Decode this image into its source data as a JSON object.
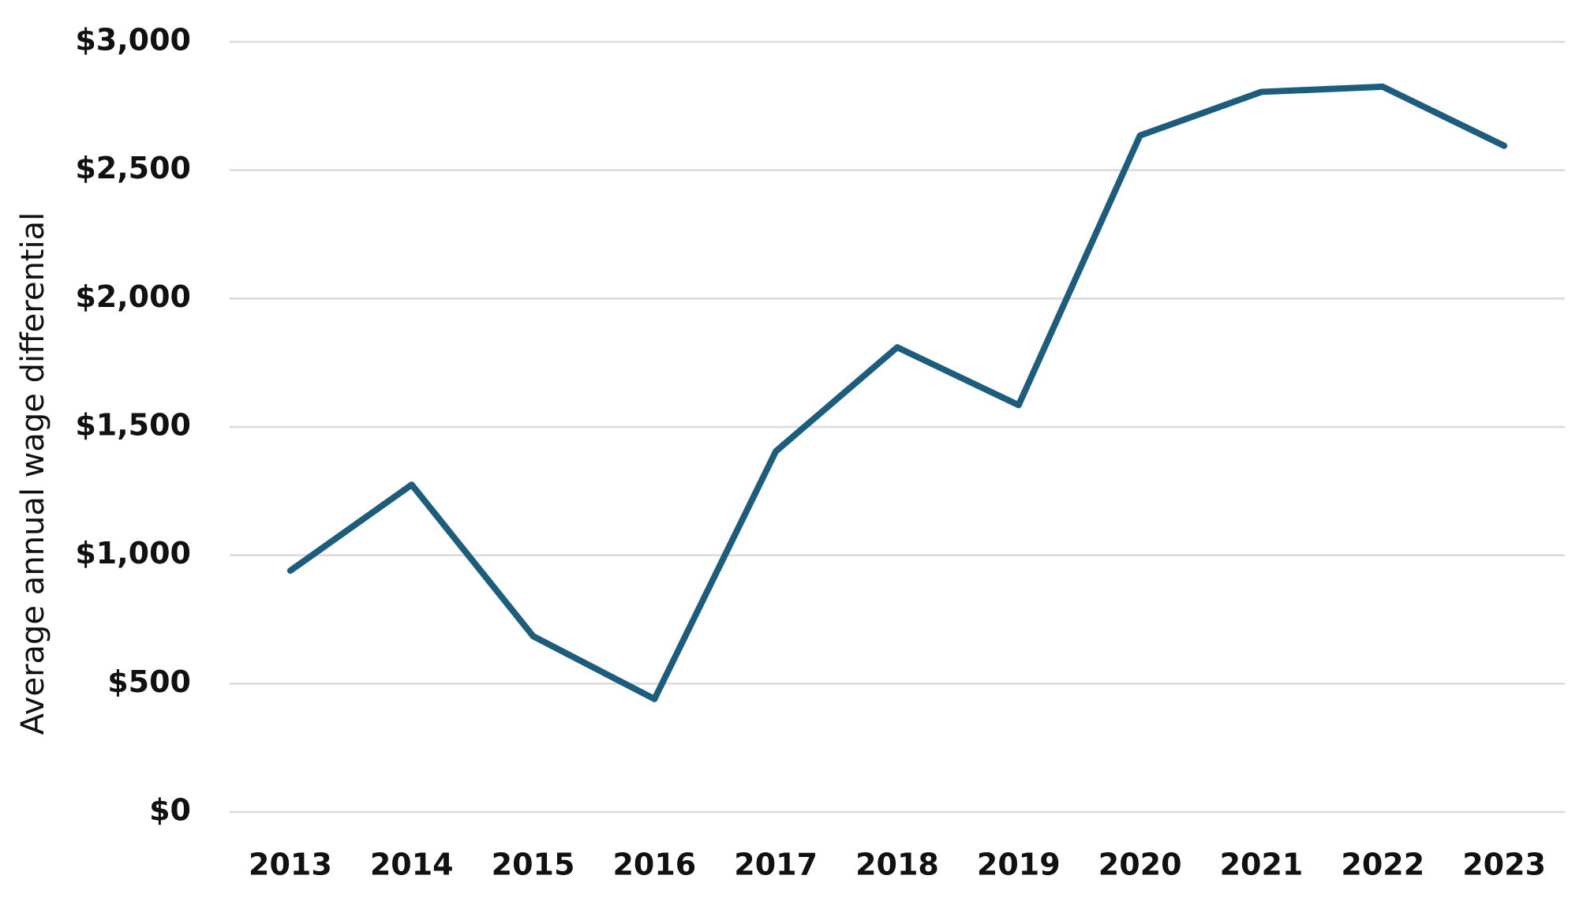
{
  "chart_data": {
    "type": "line",
    "y_label": "Average annual wage differential",
    "categories": [
      "2013",
      "2014",
      "2015",
      "2016",
      "2017",
      "2018",
      "2019",
      "2020",
      "2021",
      "2022",
      "2023"
    ],
    "series": [
      {
        "color": "#1c5d7e",
        "values": [
          940,
          1275,
          685,
          440,
          1405,
          1810,
          1585,
          2635,
          2805,
          2825,
          2595
        ]
      }
    ],
    "ylim": [
      0,
      3000
    ],
    "yticks": [
      {
        "value": 0,
        "label": "$0"
      },
      {
        "value": 500,
        "label": "$500"
      },
      {
        "value": 1000,
        "label": "$1,000"
      },
      {
        "value": 1500,
        "label": "$1,500"
      },
      {
        "value": 2000,
        "label": "$2,000"
      },
      {
        "value": 2500,
        "label": "$2,500"
      },
      {
        "value": 3000,
        "label": "$3,000"
      }
    ],
    "grid": true
  }
}
